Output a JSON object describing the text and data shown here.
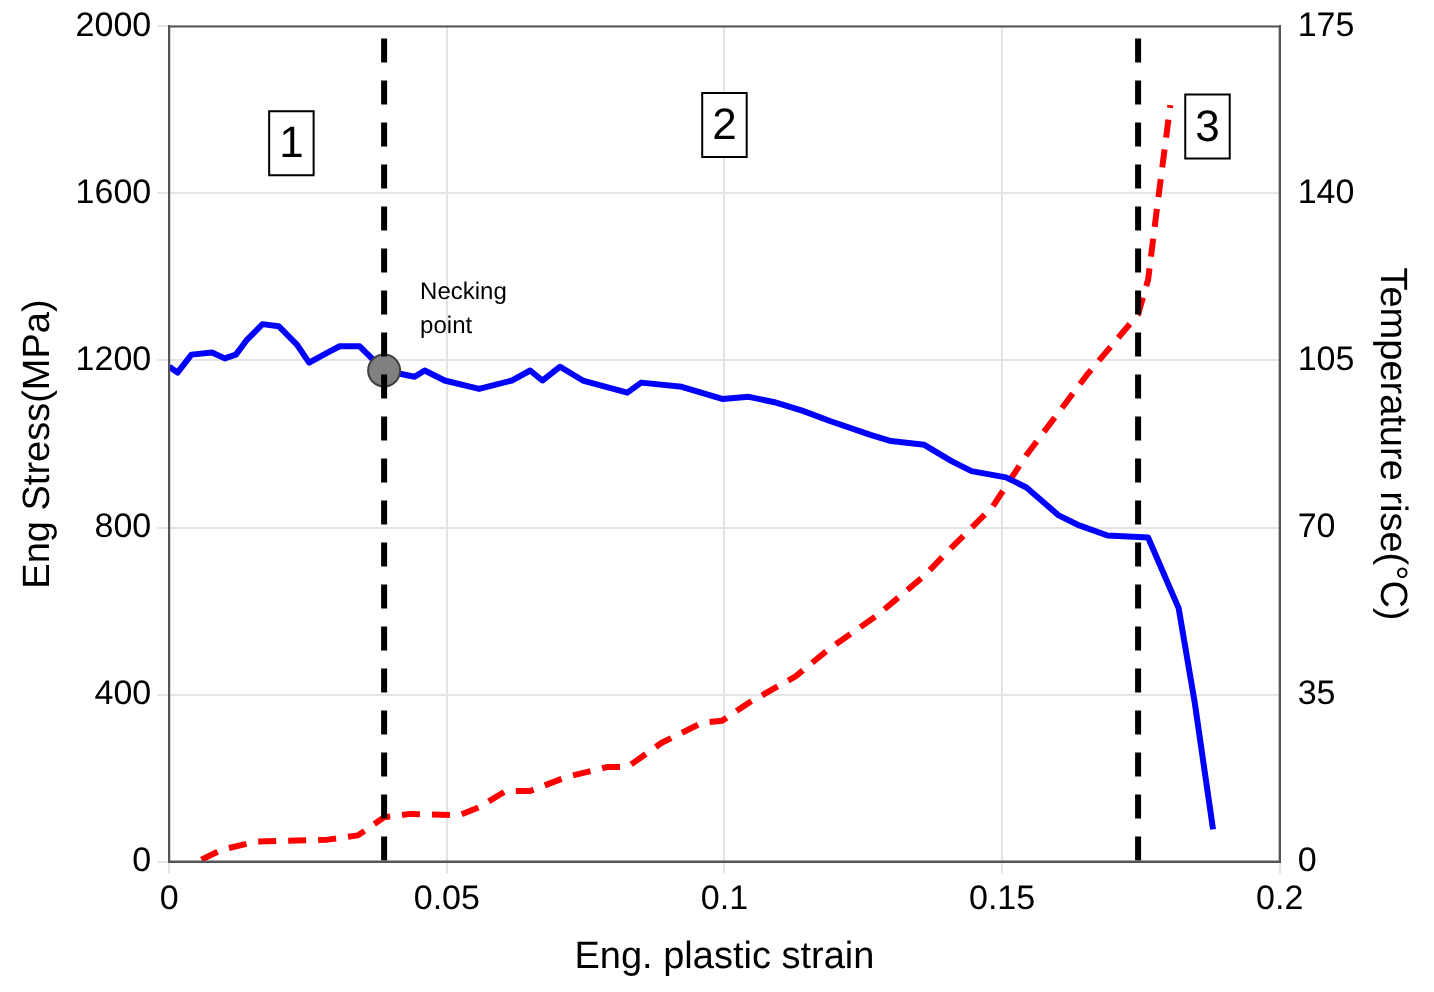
{
  "chart_data": {
    "type": "line",
    "xlabel": "Eng. plastic strain",
    "ylabel": "Eng Stress(MPa)",
    "y2label": "Temperature rise(°C)",
    "xlim": [
      0,
      0.2
    ],
    "xticks": [
      0,
      0.05,
      0.1,
      0.15,
      0.2
    ],
    "ylim": [
      0,
      2000
    ],
    "yticks": [
      0,
      400,
      800,
      1200,
      1600,
      2000
    ],
    "y2lim": [
      0,
      175
    ],
    "y2ticks": [
      0,
      35,
      70,
      105,
      140,
      175
    ],
    "grid": true,
    "legend": false,
    "series": [
      {
        "color": "#0000ff",
        "line_style": "solid",
        "marker": "none",
        "x": [
          0,
          0.0015,
          0.004,
          0.0077,
          0.01,
          0.012,
          0.0139,
          0.0168,
          0.0197,
          0.023,
          0.0252,
          0.0285,
          0.0307,
          0.0343,
          0.0387,
          0.0442,
          0.046,
          0.0496,
          0.0558,
          0.0617,
          0.065,
          0.0672,
          0.0704,
          0.0745,
          0.0825,
          0.085,
          0.0923,
          0.0996,
          0.1044,
          0.109,
          0.114,
          0.119,
          0.1263,
          0.13,
          0.136,
          0.1409,
          0.1445,
          0.1507,
          0.1544,
          0.1602,
          0.1639,
          0.169,
          0.1763,
          0.1818,
          0.1847,
          0.188
        ],
        "values": [
          1185,
          1171,
          1214,
          1219,
          1205,
          1214,
          1248,
          1287,
          1282,
          1238,
          1195,
          1219,
          1234,
          1234,
          1176,
          1161,
          1176,
          1152,
          1132,
          1152,
          1176,
          1152,
          1185,
          1152,
          1123,
          1147,
          1137,
          1108,
          1113,
          1100,
          1080,
          1055,
          1022,
          1007,
          998,
          959,
          935,
          920,
          896,
          829,
          805,
          781,
          776,
          607,
          381,
          77
        ]
      },
      {
        "axis": "y2",
        "color": "#ff0000",
        "line_style": "dashed",
        "marker": "none",
        "x": [
          0.0058,
          0.0095,
          0.0157,
          0.0285,
          0.034,
          0.0387,
          0.0434,
          0.0522,
          0.0558,
          0.0606,
          0.065,
          0.0715,
          0.0788,
          0.0825,
          0.0887,
          0.096,
          0.0996,
          0.1044,
          0.1128,
          0.119,
          0.1274,
          0.136,
          0.1409,
          0.1482,
          0.1544,
          0.1653,
          0.1745,
          0.1763,
          0.1781,
          0.1803
        ],
        "values": [
          0.4,
          2.5,
          4.2,
          4.6,
          5.5,
          9.3,
          10,
          9.7,
          11.4,
          14.8,
          14.8,
          17.7,
          19.8,
          19.8,
          24.9,
          29.1,
          29.5,
          33.3,
          38.8,
          44.7,
          51.5,
          59.9,
          65.8,
          74.2,
          85.2,
          102,
          114.7,
          121.9,
          138.7,
          158.5
        ]
      },
      {
        "type": "scatter",
        "color": "#808080",
        "marker": "circle",
        "x": [
          0.0387
        ],
        "values": [
          1176
        ]
      }
    ],
    "ref_lines": [
      {
        "axis": "x",
        "value": 0.0387,
        "color": "#000000",
        "line_style": "dashed"
      },
      {
        "axis": "x",
        "value": 0.1745,
        "color": "#000000",
        "line_style": "dashed"
      }
    ],
    "annotations": [
      {
        "text": "1",
        "x": 0.022,
        "y": 1720
      },
      {
        "text": "2",
        "x": 0.1,
        "y": 1764
      },
      {
        "text": "3",
        "x": 0.187,
        "y": 1760
      },
      {
        "text": "Necking point",
        "x": 0.0387,
        "y": 1176
      }
    ]
  }
}
